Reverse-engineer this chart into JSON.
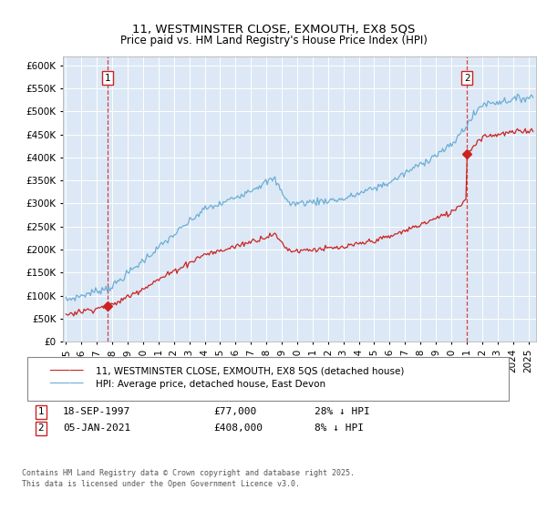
{
  "title": "11, WESTMINSTER CLOSE, EXMOUTH, EX8 5QS",
  "subtitle": "Price paid vs. HM Land Registry's House Price Index (HPI)",
  "ylim": [
    0,
    620000
  ],
  "yticks": [
    0,
    50000,
    100000,
    150000,
    200000,
    250000,
    300000,
    350000,
    400000,
    450000,
    500000,
    550000,
    600000
  ],
  "ytick_labels": [
    "£0",
    "£50K",
    "£100K",
    "£150K",
    "£200K",
    "£250K",
    "£300K",
    "£350K",
    "£400K",
    "£450K",
    "£500K",
    "£550K",
    "£600K"
  ],
  "hpi_color": "#6baed6",
  "price_color": "#cc2222",
  "marker_color": "#cc2222",
  "bg_color": "#dce8f5",
  "grid_color": "#ffffff",
  "sale1_date": 1997.72,
  "sale1_price": 77000,
  "sale1_label": "1",
  "sale2_date": 2021.02,
  "sale2_price": 408000,
  "sale2_label": "2",
  "legend_line1": "11, WESTMINSTER CLOSE, EXMOUTH, EX8 5QS (detached house)",
  "legend_line2": "HPI: Average price, detached house, East Devon",
  "footer": "Contains HM Land Registry data © Crown copyright and database right 2025.\nThis data is licensed under the Open Government Licence v3.0.",
  "xmin": 1994.8,
  "xmax": 2025.5
}
